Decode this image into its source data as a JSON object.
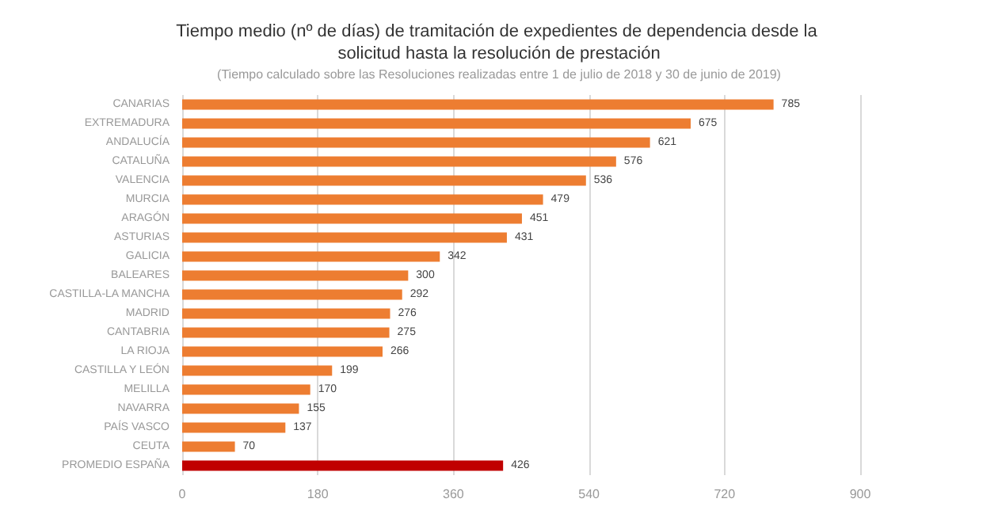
{
  "chart_data": {
    "type": "bar",
    "orientation": "horizontal",
    "title": "Tiempo medio (nº de días) de tramitación de expedientes de dependencia desde la solicitud hasta la resolución de prestación",
    "subtitle": "(Tiempo calculado sobre las Resoluciones realizadas entre 1 de julio de 2018 y 30 de junio de 2019)",
    "categories": [
      "CANARIAS",
      "EXTREMADURA",
      "ANDALUCÍA",
      "CATALUÑA",
      "VALENCIA",
      "MURCIA",
      "ARAGÓN",
      "ASTURIAS",
      "GALICIA",
      "BALEARES",
      "CASTILLA-LA MANCHA",
      "MADRID",
      "CANTABRIA",
      "LA RIOJA",
      "CASTILLA Y LEÓN",
      "MELILLA",
      "NAVARRA",
      "PAÍS VASCO",
      "CEUTA",
      "PROMEDIO ESPAÑA"
    ],
    "values": [
      785,
      675,
      621,
      576,
      536,
      479,
      451,
      431,
      342,
      300,
      292,
      276,
      275,
      266,
      199,
      170,
      155,
      137,
      70,
      426
    ],
    "colors": [
      "#ed7d31",
      "#ed7d31",
      "#ed7d31",
      "#ed7d31",
      "#ed7d31",
      "#ed7d31",
      "#ed7d31",
      "#ed7d31",
      "#ed7d31",
      "#ed7d31",
      "#ed7d31",
      "#ed7d31",
      "#ed7d31",
      "#ed7d31",
      "#ed7d31",
      "#ed7d31",
      "#ed7d31",
      "#ed7d31",
      "#ed7d31",
      "#c00000"
    ],
    "xlim": [
      0,
      900
    ],
    "xticks": [
      0,
      180,
      360,
      540,
      720,
      900
    ],
    "grid": "x",
    "data_labels": true
  }
}
